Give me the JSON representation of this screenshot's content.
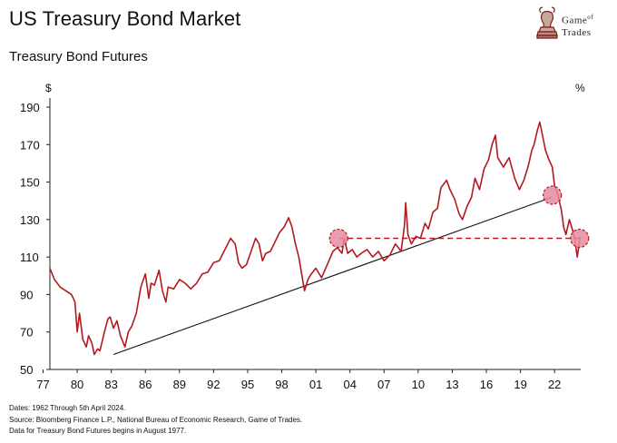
{
  "header": {
    "title": "US Treasury Bond Market",
    "subtitle": "Treasury Bond Futures",
    "logo_line1": "Game",
    "logo_of": "of",
    "logo_line2": "Trades"
  },
  "footer": {
    "note1": "Dates: 1962 Through 5th April 2024.",
    "note2": "Source: Bloomberg Finance L.P., National Bureau of Economic Research, Game of Trades.",
    "note3": "Data for Treasury Bond Futures begins in August 1977."
  },
  "colors": {
    "series": "#b3191e",
    "trendline": "#111111",
    "marker_fill": "#e58ca0",
    "marker_stroke": "#b3191e"
  },
  "icons": [
    "bull-knight-logo-icon"
  ],
  "chart_data": {
    "type": "line",
    "title": "Treasury Bond Futures",
    "ylabel_left": "$",
    "ylabel_right": "%",
    "ylim": [
      50,
      190
    ],
    "yticks": [
      50,
      70,
      90,
      110,
      130,
      150,
      170,
      190
    ],
    "xticks": [
      "77",
      "80",
      "83",
      "86",
      "89",
      "92",
      "95",
      "98",
      "01",
      "04",
      "07",
      "10",
      "13",
      "16",
      "19",
      "22"
    ],
    "xlim": [
      1977.6,
      2024.3
    ],
    "grid": false,
    "series": [
      {
        "x": [
          1977.6,
          1978.0,
          1978.5,
          1979.0,
          1979.5,
          1979.8,
          1980.0,
          1980.2,
          1980.5,
          1980.8,
          1981.0,
          1981.3,
          1981.5,
          1981.8,
          1982.0,
          1982.4,
          1982.7,
          1982.9,
          1983.2,
          1983.5,
          1983.8,
          1984.2,
          1984.5,
          1984.8,
          1985.2,
          1985.6,
          1986.0,
          1986.3,
          1986.5,
          1986.8,
          1987.2,
          1987.5,
          1987.8,
          1988.0,
          1988.5,
          1989.0,
          1989.5,
          1990.0,
          1990.5,
          1991.0,
          1991.5,
          1992.0,
          1992.5,
          1993.0,
          1993.5,
          1993.9,
          1994.2,
          1994.5,
          1994.9,
          1995.3,
          1995.7,
          1996.0,
          1996.3,
          1996.6,
          1997.0,
          1997.4,
          1997.8,
          1998.2,
          1998.6,
          1998.9,
          1999.2,
          1999.5,
          2000.0,
          2000.3,
          2000.6,
          2001.0,
          2001.5,
          2002.0,
          2002.5,
          2002.9,
          2003.3,
          2003.5,
          2003.8,
          2004.2,
          2004.6,
          2005.0,
          2005.5,
          2006.0,
          2006.5,
          2007.0,
          2007.5,
          2008.0,
          2008.5,
          2008.8,
          2008.9,
          2009.1,
          2009.4,
          2009.8,
          2010.2,
          2010.6,
          2010.9,
          2011.3,
          2011.7,
          2012.0,
          2012.5,
          2012.8,
          2013.2,
          2013.6,
          2013.9,
          2014.3,
          2014.7,
          2015.0,
          2015.4,
          2015.8,
          2016.2,
          2016.5,
          2016.8,
          2017.0,
          2017.5,
          2018.0,
          2018.5,
          2018.9,
          2019.3,
          2019.7,
          2020.0,
          2020.2,
          2020.5,
          2020.7,
          2020.9,
          2021.2,
          2021.5,
          2021.8,
          2022.0,
          2022.3,
          2022.6,
          2022.8,
          2023.0,
          2023.3,
          2023.6,
          2023.8,
          2024.0,
          2024.25
        ],
        "values": [
          104,
          98,
          94,
          92,
          90,
          86,
          70,
          80,
          66,
          62,
          68,
          64,
          58,
          61,
          60,
          70,
          77,
          78,
          72,
          76,
          68,
          62,
          70,
          73,
          80,
          94,
          101,
          88,
          96,
          95,
          103,
          92,
          86,
          94,
          93,
          98,
          96,
          93,
          96,
          101,
          102,
          107,
          108,
          114,
          120,
          117,
          107,
          104,
          106,
          113,
          120,
          117,
          108,
          112,
          113,
          118,
          123,
          126,
          131,
          126,
          117,
          110,
          92,
          98,
          101,
          104,
          99,
          106,
          113,
          115,
          112,
          120,
          112,
          114,
          110,
          112,
          114,
          110,
          113,
          108,
          111,
          117,
          113,
          127,
          139,
          122,
          117,
          121,
          120,
          128,
          125,
          134,
          136,
          147,
          151,
          146,
          141,
          133,
          130,
          137,
          142,
          152,
          146,
          157,
          162,
          170,
          175,
          163,
          158,
          163,
          152,
          146,
          151,
          159,
          167,
          170,
          178,
          182,
          176,
          167,
          162,
          158,
          148,
          143,
          135,
          126,
          122,
          130,
          124,
          119,
          110,
          121
        ]
      }
    ],
    "trendline": {
      "x": [
        1983.2,
        2021.8
      ],
      "y": [
        58,
        142
      ]
    },
    "support_line": {
      "x": [
        2003.0,
        2024.2
      ],
      "y": [
        120,
        120
      ],
      "style": "dashed"
    },
    "highlight_markers": [
      {
        "x": 2003.0,
        "y": 120
      },
      {
        "x": 2021.8,
        "y": 143
      },
      {
        "x": 2024.2,
        "y": 120
      }
    ]
  }
}
